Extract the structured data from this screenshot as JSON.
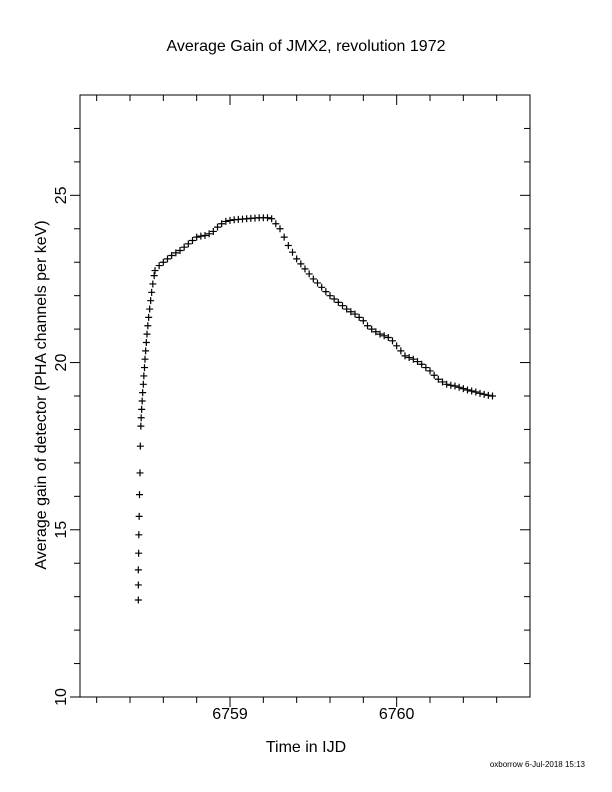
{
  "chart_data": {
    "type": "scatter",
    "title": "Average Gain of JMX2, revolution 1972",
    "x_label": "Time in IJD",
    "y_label": "Average gain of detector (PHA channels per keV)",
    "footer": "oxborrow  6-Jul-2018 15:13",
    "marker": "+",
    "color": "#000000",
    "xlim": [
      6758.1,
      6760.8
    ],
    "ylim": [
      10,
      28
    ],
    "xticks": [
      6759,
      6760
    ],
    "yticks": [
      10,
      15,
      20,
      25
    ],
    "xminor_ticks": [
      6758.2,
      6758.4,
      6758.6,
      6758.8,
      6759.2,
      6759.4,
      6759.6,
      6759.8,
      6760.2,
      6760.4,
      6760.6
    ],
    "yminor_ticks": [
      11,
      12,
      13,
      14,
      16,
      17,
      18,
      19,
      21,
      22,
      23,
      24,
      26,
      27
    ],
    "x": [
      6758.45,
      6758.45,
      6758.45,
      6758.452,
      6758.453,
      6758.455,
      6758.457,
      6758.46,
      6758.462,
      6758.465,
      6758.467,
      6758.47,
      6758.473,
      6758.476,
      6758.48,
      6758.483,
      6758.487,
      6758.49,
      6758.494,
      6758.498,
      6758.502,
      6758.507,
      6758.512,
      6758.518,
      6758.524,
      6758.53,
      6758.537,
      6758.545,
      6758.55,
      6758.575,
      6758.6,
      6758.625,
      6758.65,
      6758.675,
      6758.7,
      6758.725,
      6758.75,
      6758.775,
      6758.8,
      6758.825,
      6758.85,
      6758.875,
      6758.9,
      6758.925,
      6758.95,
      6758.975,
      6759.0,
      6759.025,
      6759.05,
      6759.075,
      6759.1,
      6759.125,
      6759.15,
      6759.175,
      6759.2,
      6759.225,
      6759.25,
      6759.275,
      6759.3,
      6759.325,
      6759.35,
      6759.375,
      6759.4,
      6759.425,
      6759.45,
      6759.475,
      6759.5,
      6759.525,
      6759.55,
      6759.575,
      6759.6,
      6759.625,
      6759.65,
      6759.675,
      6759.7,
      6759.725,
      6759.75,
      6759.775,
      6759.8,
      6759.825,
      6759.85,
      6759.875,
      6759.9,
      6759.925,
      6759.95,
      6759.975,
      6760.0,
      6760.025,
      6760.05,
      6760.075,
      6760.1,
      6760.125,
      6760.15,
      6760.175,
      6760.2,
      6760.225,
      6760.25,
      6760.275,
      6760.3,
      6760.325,
      6760.35,
      6760.375,
      6760.4,
      6760.425,
      6760.45,
      6760.475,
      6760.5,
      6760.525,
      6760.55,
      6760.575
    ],
    "y": [
      12.9,
      13.35,
      13.8,
      14.3,
      14.85,
      15.4,
      16.05,
      16.7,
      17.5,
      18.1,
      18.35,
      18.6,
      18.85,
      19.1,
      19.35,
      19.6,
      19.85,
      20.1,
      20.35,
      20.6,
      20.85,
      21.1,
      21.35,
      21.6,
      21.85,
      22.1,
      22.35,
      22.6,
      22.75,
      22.9,
      23.0,
      23.1,
      23.2,
      23.28,
      23.35,
      23.45,
      23.55,
      23.65,
      23.75,
      23.78,
      23.8,
      23.85,
      23.92,
      24.05,
      24.15,
      24.22,
      24.25,
      24.27,
      24.28,
      24.29,
      24.3,
      24.31,
      24.32,
      24.33,
      24.33,
      24.33,
      24.3,
      24.15,
      24.0,
      23.75,
      23.5,
      23.3,
      23.1,
      22.95,
      22.8,
      22.65,
      22.5,
      22.38,
      22.25,
      22.12,
      22.0,
      21.9,
      21.8,
      21.7,
      21.6,
      21.52,
      21.45,
      21.35,
      21.25,
      21.1,
      21.0,
      20.92,
      20.85,
      20.8,
      20.75,
      20.65,
      20.5,
      20.35,
      20.2,
      20.15,
      20.1,
      20.03,
      19.95,
      19.85,
      19.75,
      19.62,
      19.5,
      19.42,
      19.35,
      19.32,
      19.3,
      19.26,
      19.22,
      19.18,
      19.15,
      19.12,
      19.08,
      19.05,
      19.02,
      19.0
    ]
  }
}
